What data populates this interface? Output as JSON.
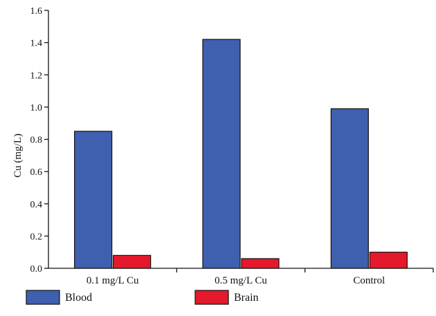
{
  "chart_data": {
    "type": "bar",
    "title": "",
    "xlabel": "",
    "ylabel": "Cu (mg/L)",
    "ylim": [
      0,
      1.6
    ],
    "yticks": [
      "0.0",
      "0.2",
      "0.4",
      "0.6",
      "0.8",
      "1.0",
      "1.2",
      "1.4",
      "1.6"
    ],
    "categories": [
      "0.1 mg/L Cu",
      "0.5 mg/L Cu",
      "Control"
    ],
    "series": [
      {
        "name": "Blood",
        "values": [
          0.85,
          1.42,
          0.99
        ],
        "color": "#3f5faf"
      },
      {
        "name": "Brain",
        "values": [
          0.08,
          0.06,
          0.1
        ],
        "color": "#e41a2c"
      }
    ],
    "grid": false,
    "legend_position": "bottom"
  }
}
